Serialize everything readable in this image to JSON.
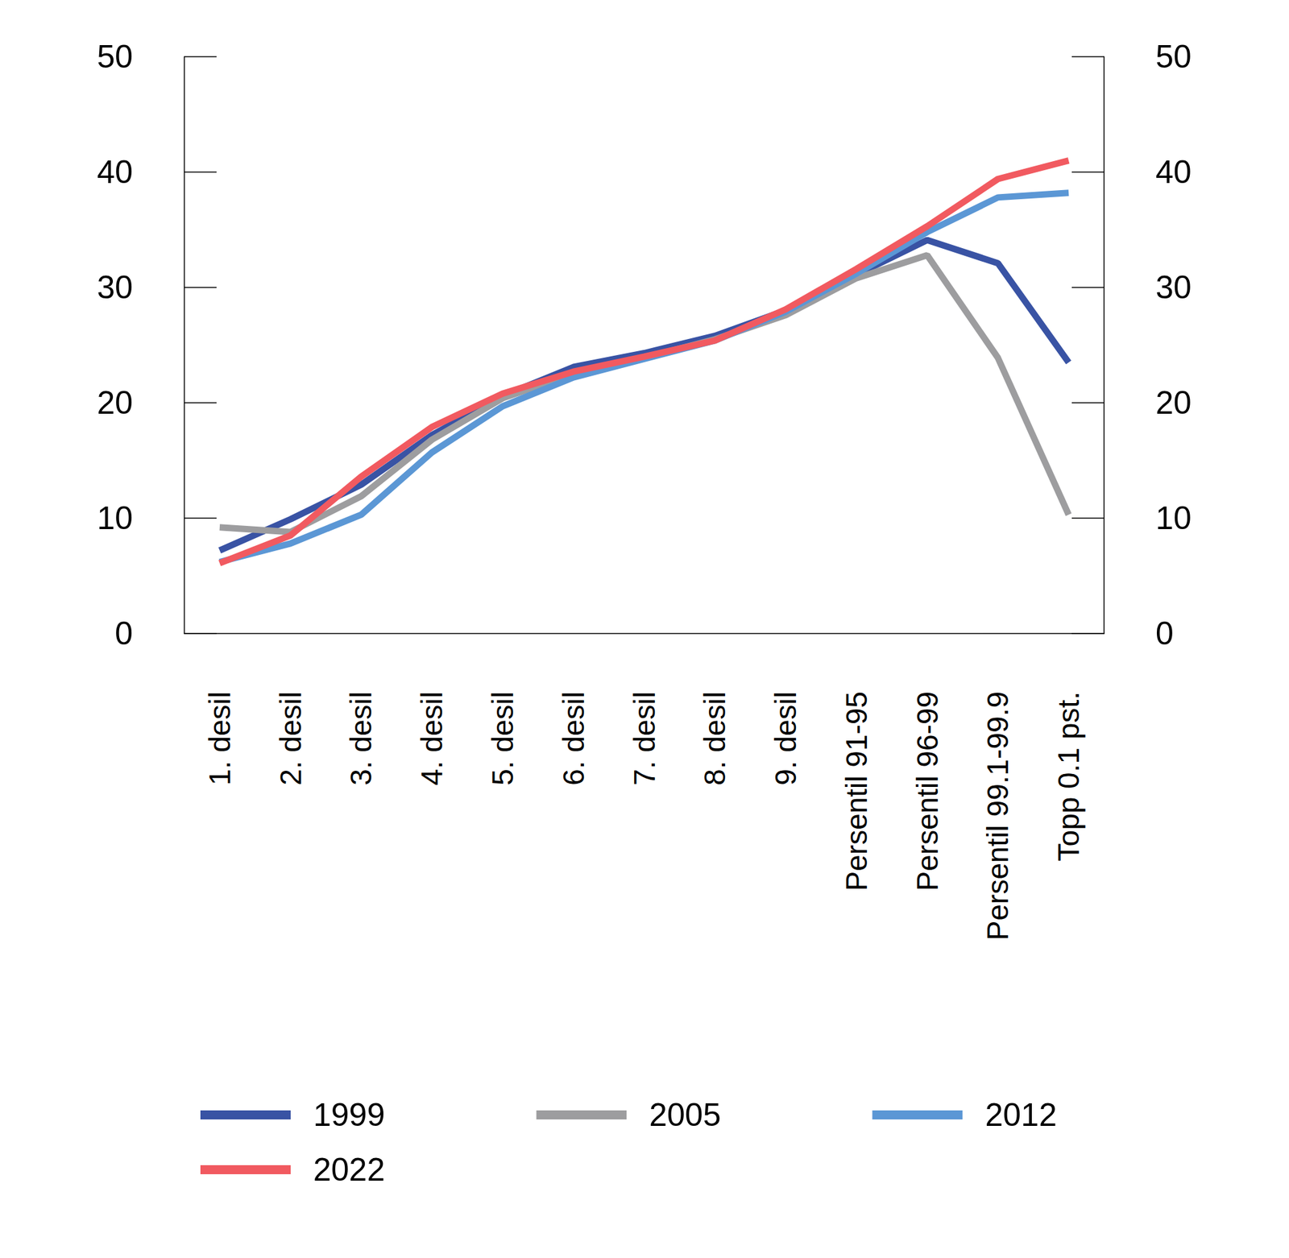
{
  "chart_data": {
    "type": "line",
    "categories": [
      "1. desil",
      "2. desil",
      "3. desil",
      "4. desil",
      "5. desil",
      "6. desil",
      "7. desil",
      "8. desil",
      "9. desil",
      "Persentil 91-95",
      "Persentil 96-99",
      "Persentil 99.1-99.9",
      "Topp 0.1 pst."
    ],
    "series": [
      {
        "name": "1999",
        "color": "#3953a4",
        "values": [
          7.2,
          9.9,
          12.9,
          17.2,
          20.6,
          23.1,
          24.3,
          25.8,
          28.0,
          31.1,
          34.1,
          32.1,
          23.5
        ]
      },
      {
        "name": "2005",
        "color": "#9d9d9f",
        "values": [
          9.2,
          8.8,
          11.9,
          16.8,
          20.4,
          22.5,
          23.9,
          25.5,
          27.6,
          30.8,
          32.8,
          23.9,
          10.3
        ]
      },
      {
        "name": "2012",
        "color": "#5b97d5",
        "values": [
          6.2,
          7.8,
          10.3,
          15.7,
          19.7,
          22.2,
          23.8,
          25.4,
          27.9,
          31.2,
          34.8,
          37.8,
          38.2
        ]
      },
      {
        "name": "2022",
        "color": "#f15a60",
        "values": [
          6.1,
          8.5,
          13.6,
          17.9,
          20.8,
          22.7,
          24.0,
          25.4,
          28.1,
          31.6,
          35.3,
          39.4,
          41.0
        ]
      }
    ],
    "ylim": [
      0,
      50
    ],
    "yticks": [
      0,
      10,
      20,
      30,
      40,
      50
    ],
    "grid": false,
    "legend": "bottom"
  }
}
